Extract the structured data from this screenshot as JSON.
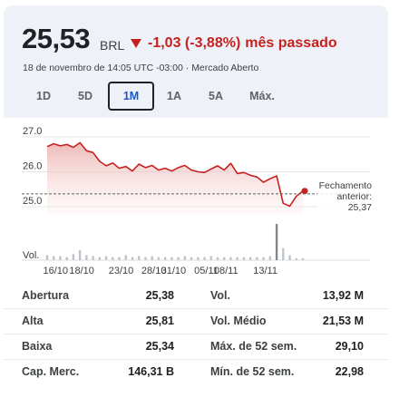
{
  "header": {
    "price": "25,53",
    "currency": "BRL",
    "change": "-1,03 (-3,88%)",
    "period": "mês passado",
    "meta": "18 de novembro de 14:05 UTC -03:00 · Mercado Aberto"
  },
  "tabs": [
    {
      "label": "1D",
      "active": false
    },
    {
      "label": "5D",
      "active": false
    },
    {
      "label": "1M",
      "active": true
    },
    {
      "label": "1A",
      "active": false
    },
    {
      "label": "5A",
      "active": false
    },
    {
      "label": "Máx.",
      "active": false
    }
  ],
  "chart_data": {
    "type": "line",
    "ylim": [
      24.9,
      27.1
    ],
    "ytick_labels": [
      "27.0",
      "26.0",
      "25.0"
    ],
    "ytick_values": [
      27.0,
      26.0,
      25.0
    ],
    "xtick_labels": [
      "16/10",
      "18/10",
      "23/10",
      "28/10",
      "31/10",
      "05/11",
      "08/11",
      "13/11"
    ],
    "xtick_dates": [
      "2023-10-16",
      "2023-10-18",
      "2023-10-23",
      "2023-10-28",
      "2023-10-31",
      "2023-11-05",
      "2023-11-08",
      "2023-11-13"
    ],
    "x": [
      "2023-10-16",
      "2023-10-16",
      "2023-10-17",
      "2023-10-17",
      "2023-10-18",
      "2023-10-18",
      "2023-10-19",
      "2023-10-19",
      "2023-10-20",
      "2023-10-21",
      "2023-10-22",
      "2023-10-23",
      "2023-10-24",
      "2023-10-25",
      "2023-10-26",
      "2023-10-27",
      "2023-10-28",
      "2023-10-29",
      "2023-10-30",
      "2023-10-31",
      "2023-11-01",
      "2023-11-02",
      "2023-11-03",
      "2023-11-04",
      "2023-11-05",
      "2023-11-06",
      "2023-11-07",
      "2023-11-08",
      "2023-11-09",
      "2023-11-10",
      "2023-11-11",
      "2023-11-12",
      "2023-11-13",
      "2023-11-13",
      "2023-11-14",
      "2023-11-14",
      "2023-11-15",
      "2023-11-16",
      "2023-11-16",
      "2023-11-17"
    ],
    "values": [
      26.72,
      26.8,
      26.74,
      26.78,
      26.7,
      26.83,
      26.6,
      26.55,
      26.3,
      26.17,
      26.25,
      26.1,
      26.15,
      26.02,
      26.22,
      26.12,
      26.18,
      26.05,
      26.1,
      26.02,
      26.12,
      26.18,
      26.05,
      26.0,
      25.98,
      26.08,
      26.17,
      26.05,
      26.24,
      25.95,
      25.98,
      25.9,
      25.85,
      25.7,
      25.8,
      25.88,
      25.1,
      25.02,
      25.3,
      25.45
    ],
    "ylabel": "",
    "xlabel": "",
    "previous_close_label": "Fechamento anterior:",
    "previous_close": "25,37",
    "previous_close_value": 25.37,
    "line_color": "#c5221f",
    "volume_label": "Vol.",
    "volume": [
      5,
      4,
      4,
      3,
      6,
      10,
      5,
      4,
      3,
      4,
      3,
      3,
      5,
      3,
      4,
      3,
      4,
      3,
      3,
      3,
      3,
      4,
      3,
      3,
      3,
      4,
      3,
      3,
      3,
      3,
      3,
      3,
      3,
      3,
      4,
      36,
      12,
      5,
      2,
      2
    ],
    "grid": true
  },
  "stats": {
    "left": [
      {
        "label": "Abertura",
        "value": "25,38"
      },
      {
        "label": "Alta",
        "value": "25,81"
      },
      {
        "label": "Baixa",
        "value": "25,34"
      },
      {
        "label": "Cap. Merc.",
        "value": "146,31 B"
      }
    ],
    "right": [
      {
        "label": "Vol.",
        "value": "13,92 M"
      },
      {
        "label": "Vol. Médio",
        "value": "21,53 M"
      },
      {
        "label": "Máx. de 52 sem.",
        "value": "29,10"
      },
      {
        "label": "Mín. de 52 sem.",
        "value": "22,98"
      }
    ]
  }
}
